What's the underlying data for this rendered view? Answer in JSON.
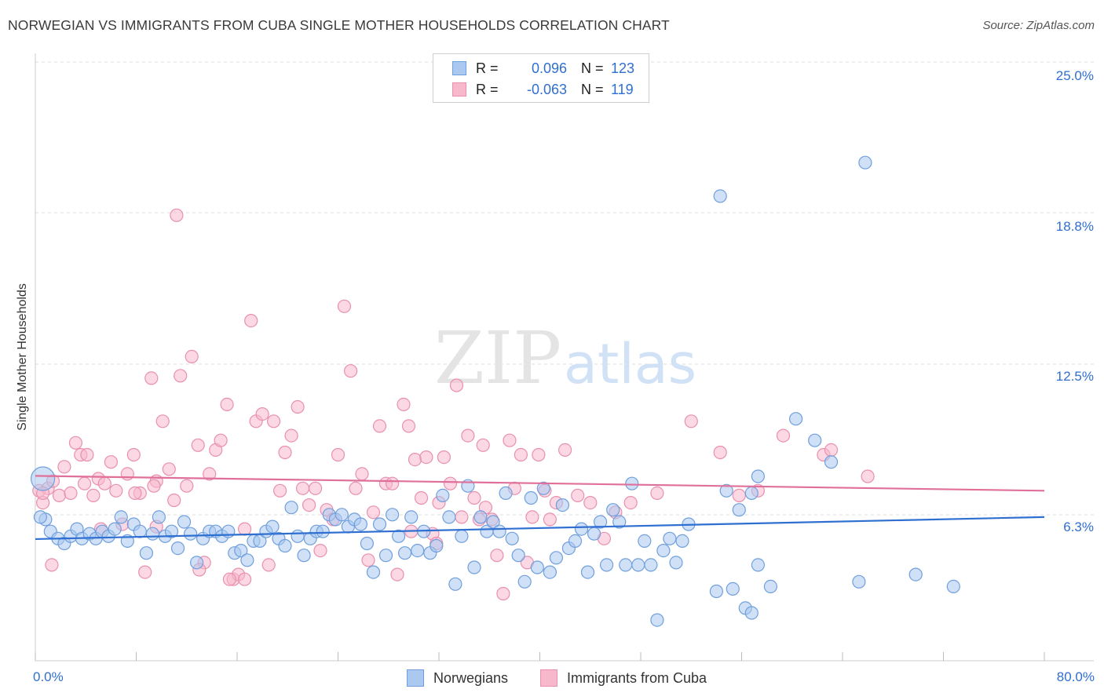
{
  "header": {
    "title": "NORWEGIAN VS IMMIGRANTS FROM CUBA SINGLE MOTHER HOUSEHOLDS CORRELATION CHART",
    "source": "Source: ZipAtlas.com"
  },
  "watermark": {
    "zip": "ZIP",
    "atlas": "atlas"
  },
  "legend": {
    "series": [
      {
        "r_label": "R =",
        "r_value": "0.096",
        "n_label": "N =",
        "n_value": "123"
      },
      {
        "r_label": "R =",
        "r_value": "-0.063",
        "n_label": "N =",
        "n_value": "119"
      }
    ]
  },
  "bottom_legend": {
    "series1": "Norwegians",
    "series2": "Immigrants from Cuba"
  },
  "axes": {
    "y_label": "Single Mother Households",
    "x_min_label": "0.0%",
    "x_max_label": "80.0%",
    "y_tick_labels": [
      "25.0%",
      "18.8%",
      "12.5%",
      "6.3%"
    ]
  },
  "colors": {
    "blue_fill": "#aac8f0",
    "blue_stroke": "#6f9fdc",
    "blue_line": "#2f6fd1",
    "pink_fill": "#f7b8cc",
    "pink_stroke": "#e890ae",
    "pink_line": "#e0709a",
    "accent_text": "#2f6fd1",
    "grid": "#dddddd"
  },
  "chart_data": {
    "type": "scatter",
    "title": "NORWEGIAN VS IMMIGRANTS FROM CUBA SINGLE MOTHER HOUSEHOLDS CORRELATION CHART",
    "xlabel": "",
    "ylabel": "Single Mother Households",
    "xlim": [
      0,
      80
    ],
    "ylim": [
      0,
      25
    ],
    "y_ticks": [
      6.3,
      12.5,
      18.8,
      25.0
    ],
    "grid": true,
    "legend_position": "top-center",
    "series": [
      {
        "name": "Norwegians",
        "color": "#aac8f0",
        "R": 0.096,
        "N": 123,
        "trend": {
          "x": [
            0,
            80
          ],
          "y": [
            5.08,
            6.0
          ]
        },
        "points": [
          [
            0.6,
            7.6
          ],
          [
            0.8,
            5.9
          ],
          [
            1.2,
            5.4
          ],
          [
            1.8,
            5.1
          ],
          [
            2.3,
            4.9
          ],
          [
            2.8,
            5.2
          ],
          [
            3.3,
            5.5
          ],
          [
            3.7,
            5.1
          ],
          [
            4.3,
            5.3
          ],
          [
            4.8,
            5.1
          ],
          [
            5.3,
            5.4
          ],
          [
            5.8,
            5.2
          ],
          [
            6.3,
            5.5
          ],
          [
            6.8,
            6.0
          ],
          [
            7.3,
            5.0
          ],
          [
            7.8,
            5.7
          ],
          [
            8.3,
            5.4
          ],
          [
            8.8,
            4.5
          ],
          [
            9.3,
            5.3
          ],
          [
            9.8,
            6.0
          ],
          [
            10.3,
            5.2
          ],
          [
            10.8,
            5.4
          ],
          [
            11.3,
            4.7
          ],
          [
            11.8,
            5.8
          ],
          [
            12.3,
            5.3
          ],
          [
            12.8,
            4.1
          ],
          [
            13.3,
            5.1
          ],
          [
            13.8,
            5.4
          ],
          [
            14.3,
            5.4
          ],
          [
            14.8,
            5.2
          ],
          [
            15.3,
            5.4
          ],
          [
            15.8,
            4.5
          ],
          [
            16.3,
            4.6
          ],
          [
            16.8,
            4.2
          ],
          [
            17.3,
            5.0
          ],
          [
            17.8,
            5.0
          ],
          [
            18.3,
            5.4
          ],
          [
            18.8,
            5.6
          ],
          [
            19.3,
            5.1
          ],
          [
            19.8,
            4.8
          ],
          [
            20.3,
            6.4
          ],
          [
            20.8,
            5.2
          ],
          [
            21.3,
            4.4
          ],
          [
            21.8,
            5.1
          ],
          [
            22.3,
            5.4
          ],
          [
            22.8,
            5.4
          ],
          [
            23.3,
            6.1
          ],
          [
            23.8,
            5.9
          ],
          [
            24.3,
            6.1
          ],
          [
            24.8,
            5.6
          ],
          [
            25.3,
            5.9
          ],
          [
            25.8,
            5.7
          ],
          [
            26.3,
            4.9
          ],
          [
            26.8,
            3.7
          ],
          [
            27.3,
            5.7
          ],
          [
            27.8,
            4.4
          ],
          [
            28.3,
            6.1
          ],
          [
            28.8,
            5.2
          ],
          [
            29.3,
            4.5
          ],
          [
            29.8,
            6.0
          ],
          [
            30.3,
            4.6
          ],
          [
            30.8,
            5.4
          ],
          [
            31.3,
            4.5
          ],
          [
            31.8,
            4.8
          ],
          [
            32.3,
            6.9
          ],
          [
            32.8,
            6.0
          ],
          [
            33.3,
            3.2
          ],
          [
            33.8,
            5.2
          ],
          [
            34.3,
            7.3
          ],
          [
            34.8,
            3.9
          ],
          [
            35.3,
            6.0
          ],
          [
            35.8,
            5.4
          ],
          [
            36.3,
            5.8
          ],
          [
            36.8,
            5.4
          ],
          [
            37.3,
            7.0
          ],
          [
            37.8,
            5.1
          ],
          [
            38.3,
            4.4
          ],
          [
            38.8,
            3.3
          ],
          [
            39.3,
            6.8
          ],
          [
            39.8,
            3.9
          ],
          [
            40.3,
            7.2
          ],
          [
            40.8,
            3.7
          ],
          [
            41.3,
            4.3
          ],
          [
            41.8,
            6.5
          ],
          [
            42.3,
            4.7
          ],
          [
            42.8,
            5.0
          ],
          [
            43.3,
            5.5
          ],
          [
            43.8,
            3.7
          ],
          [
            44.3,
            5.3
          ],
          [
            44.8,
            5.8
          ],
          [
            45.3,
            4.0
          ],
          [
            45.8,
            6.3
          ],
          [
            46.3,
            5.8
          ],
          [
            46.8,
            4.0
          ],
          [
            47.3,
            7.4
          ],
          [
            47.8,
            4.0
          ],
          [
            48.3,
            5.0
          ],
          [
            48.8,
            4.0
          ],
          [
            49.3,
            1.7
          ],
          [
            49.8,
            4.6
          ],
          [
            50.3,
            5.1
          ],
          [
            50.8,
            4.1
          ],
          [
            51.3,
            5.0
          ],
          [
            51.8,
            5.7
          ],
          [
            54.3,
            19.4
          ],
          [
            54.0,
            2.9
          ],
          [
            55.3,
            3.0
          ],
          [
            54.8,
            7.1
          ],
          [
            55.8,
            6.3
          ],
          [
            56.8,
            7.0
          ],
          [
            57.3,
            7.7
          ],
          [
            56.3,
            2.2
          ],
          [
            56.8,
            2.0
          ],
          [
            57.3,
            4.0
          ],
          [
            58.3,
            3.1
          ],
          [
            60.3,
            10.1
          ],
          [
            61.8,
            9.2
          ],
          [
            63.1,
            8.3
          ],
          [
            65.8,
            20.8
          ],
          [
            65.3,
            3.3
          ],
          [
            69.8,
            3.6
          ],
          [
            72.8,
            3.1
          ],
          [
            0.4,
            6.0
          ]
        ]
      },
      {
        "name": "Immigrants from Cuba",
        "color": "#f7b8cc",
        "R": -0.063,
        "N": 119,
        "trend": {
          "x": [
            0,
            80
          ],
          "y": [
            7.72,
            7.1
          ]
        },
        "points": [
          [
            0.3,
            7.1
          ],
          [
            0.6,
            6.6
          ],
          [
            1.0,
            7.2
          ],
          [
            1.4,
            7.5
          ],
          [
            1.9,
            6.9
          ],
          [
            2.3,
            8.1
          ],
          [
            2.8,
            7.0
          ],
          [
            3.2,
            9.1
          ],
          [
            3.6,
            8.6
          ],
          [
            4.1,
            8.6
          ],
          [
            4.6,
            6.9
          ],
          [
            5.0,
            7.6
          ],
          [
            5.5,
            7.4
          ],
          [
            6.0,
            8.3
          ],
          [
            6.4,
            7.1
          ],
          [
            6.9,
            5.7
          ],
          [
            7.3,
            7.8
          ],
          [
            7.8,
            8.6
          ],
          [
            8.3,
            7.0
          ],
          [
            8.7,
            3.7
          ],
          [
            9.2,
            11.8
          ],
          [
            9.6,
            7.5
          ],
          [
            10.1,
            10.0
          ],
          [
            10.6,
            8.0
          ],
          [
            11.0,
            6.7
          ],
          [
            11.5,
            11.9
          ],
          [
            12.0,
            7.3
          ],
          [
            12.4,
            12.7
          ],
          [
            12.9,
            9.0
          ],
          [
            13.4,
            4.1
          ],
          [
            13.8,
            7.8
          ],
          [
            14.3,
            8.8
          ],
          [
            14.7,
            9.2
          ],
          [
            15.2,
            10.7
          ],
          [
            15.7,
            3.4
          ],
          [
            16.1,
            3.6
          ],
          [
            16.6,
            5.5
          ],
          [
            17.1,
            14.2
          ],
          [
            17.5,
            10.0
          ],
          [
            18.0,
            10.3
          ],
          [
            18.5,
            4.0
          ],
          [
            18.9,
            10.0
          ],
          [
            19.4,
            7.1
          ],
          [
            19.8,
            8.7
          ],
          [
            20.3,
            9.4
          ],
          [
            20.8,
            10.6
          ],
          [
            21.2,
            7.2
          ],
          [
            21.7,
            6.5
          ],
          [
            22.2,
            7.2
          ],
          [
            22.6,
            4.6
          ],
          [
            23.1,
            6.3
          ],
          [
            23.6,
            5.9
          ],
          [
            24.0,
            8.6
          ],
          [
            24.5,
            14.8
          ],
          [
            25.0,
            12.1
          ],
          [
            25.4,
            7.2
          ],
          [
            25.9,
            7.8
          ],
          [
            26.4,
            4.2
          ],
          [
            26.8,
            6.2
          ],
          [
            27.3,
            9.8
          ],
          [
            27.8,
            7.4
          ],
          [
            28.3,
            7.4
          ],
          [
            28.7,
            3.6
          ],
          [
            29.2,
            10.7
          ],
          [
            29.6,
            9.8
          ],
          [
            30.1,
            8.4
          ],
          [
            30.6,
            6.8
          ],
          [
            31.0,
            8.5
          ],
          [
            31.5,
            5.3
          ],
          [
            32.0,
            6.6
          ],
          [
            32.4,
            8.5
          ],
          [
            32.9,
            7.4
          ],
          [
            33.4,
            11.5
          ],
          [
            33.8,
            6.0
          ],
          [
            34.3,
            9.4
          ],
          [
            34.8,
            6.8
          ],
          [
            35.2,
            5.9
          ],
          [
            35.7,
            6.4
          ],
          [
            36.2,
            5.9
          ],
          [
            36.6,
            4.4
          ],
          [
            37.1,
            2.8
          ],
          [
            37.6,
            9.2
          ],
          [
            38.0,
            7.2
          ],
          [
            38.5,
            8.6
          ],
          [
            39.0,
            4.1
          ],
          [
            39.4,
            6.0
          ],
          [
            39.9,
            8.6
          ],
          [
            40.4,
            7.1
          ],
          [
            40.8,
            5.9
          ],
          [
            41.3,
            6.6
          ],
          [
            42.0,
            8.8
          ],
          [
            43.0,
            6.9
          ],
          [
            44.0,
            6.6
          ],
          [
            45.1,
            5.1
          ],
          [
            46.0,
            6.2
          ],
          [
            47.2,
            6.6
          ],
          [
            49.3,
            7.0
          ],
          [
            52.0,
            10.0
          ],
          [
            54.3,
            8.7
          ],
          [
            55.8,
            6.9
          ],
          [
            57.3,
            7.1
          ],
          [
            59.3,
            9.4
          ],
          [
            62.5,
            8.6
          ],
          [
            63.1,
            8.8
          ],
          [
            66.0,
            7.7
          ],
          [
            0.6,
            7.0
          ],
          [
            1.3,
            4.0
          ],
          [
            5.2,
            5.5
          ],
          [
            9.6,
            5.6
          ],
          [
            13.0,
            3.8
          ],
          [
            15.4,
            3.4
          ],
          [
            11.2,
            18.6
          ],
          [
            35.5,
            9.0
          ],
          [
            29.8,
            5.4
          ],
          [
            31.8,
            4.9
          ],
          [
            9.4,
            7.3
          ],
          [
            7.9,
            7.0
          ],
          [
            3.9,
            7.4
          ],
          [
            16.6,
            3.4
          ]
        ]
      }
    ]
  }
}
